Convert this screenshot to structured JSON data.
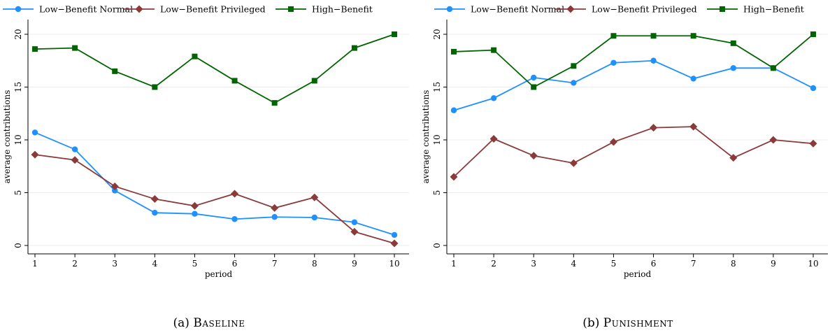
{
  "figure": {
    "panels": [
      {
        "caption_label": "(a)",
        "caption_name": "Baseline",
        "xlabel": "period",
        "ylabel": "average contributions"
      },
      {
        "caption_label": "(b)",
        "caption_name": "Punishment",
        "xlabel": "period",
        "ylabel": "average contributions"
      }
    ]
  },
  "chart_data": [
    {
      "type": "line",
      "title": "",
      "xlabel": "period",
      "ylabel": "average contributions",
      "x": [
        1,
        2,
        3,
        4,
        5,
        6,
        7,
        8,
        9,
        10
      ],
      "xticks": [
        1,
        2,
        3,
        4,
        5,
        6,
        7,
        8,
        9,
        10
      ],
      "yticks": [
        0,
        5,
        10,
        15,
        20
      ],
      "xlim": [
        1,
        10
      ],
      "ylim": [
        0,
        20
      ],
      "grid": true,
      "legend_position": "top",
      "series": [
        {
          "name": "Low−Benefit Normal",
          "color": "#1e90ff",
          "marker": "circle",
          "values": [
            10.7,
            9.1,
            5.2,
            3.1,
            3.0,
            2.5,
            2.7,
            2.65,
            2.2,
            1.0
          ]
        },
        {
          "name": "Low−Benefit Privileged",
          "color": "#8b3a3a",
          "marker": "diamond",
          "values": [
            8.6,
            8.1,
            5.6,
            4.4,
            3.75,
            4.9,
            3.55,
            4.55,
            1.3,
            0.2
          ]
        },
        {
          "name": "High−Benefit",
          "color": "#006400",
          "marker": "square",
          "values": [
            18.6,
            18.7,
            16.5,
            15.0,
            17.9,
            15.6,
            13.5,
            15.6,
            18.7,
            20.0
          ]
        }
      ]
    },
    {
      "type": "line",
      "title": "",
      "xlabel": "period",
      "ylabel": "average contributions",
      "x": [
        1,
        2,
        3,
        4,
        5,
        6,
        7,
        8,
        9,
        10
      ],
      "xticks": [
        1,
        2,
        3,
        4,
        5,
        6,
        7,
        8,
        9,
        10
      ],
      "yticks": [
        0,
        5,
        10,
        15,
        20
      ],
      "xlim": [
        1,
        10
      ],
      "ylim": [
        0,
        20
      ],
      "grid": true,
      "legend_position": "top",
      "series": [
        {
          "name": "Low−Benefit Normal",
          "color": "#1e90ff",
          "marker": "circle",
          "values": [
            12.8,
            13.95,
            15.9,
            15.4,
            17.3,
            17.5,
            15.8,
            16.8,
            16.8,
            14.9
          ]
        },
        {
          "name": "Low−Benefit Privileged",
          "color": "#8b3a3a",
          "marker": "diamond",
          "values": [
            6.5,
            10.1,
            8.5,
            7.8,
            9.8,
            11.15,
            11.25,
            8.3,
            10.0,
            9.65
          ]
        },
        {
          "name": "High−Benefit",
          "color": "#006400",
          "marker": "square",
          "values": [
            18.35,
            18.5,
            15.0,
            17.0,
            19.85,
            19.85,
            19.85,
            19.15,
            16.8,
            20.0
          ]
        }
      ]
    }
  ]
}
